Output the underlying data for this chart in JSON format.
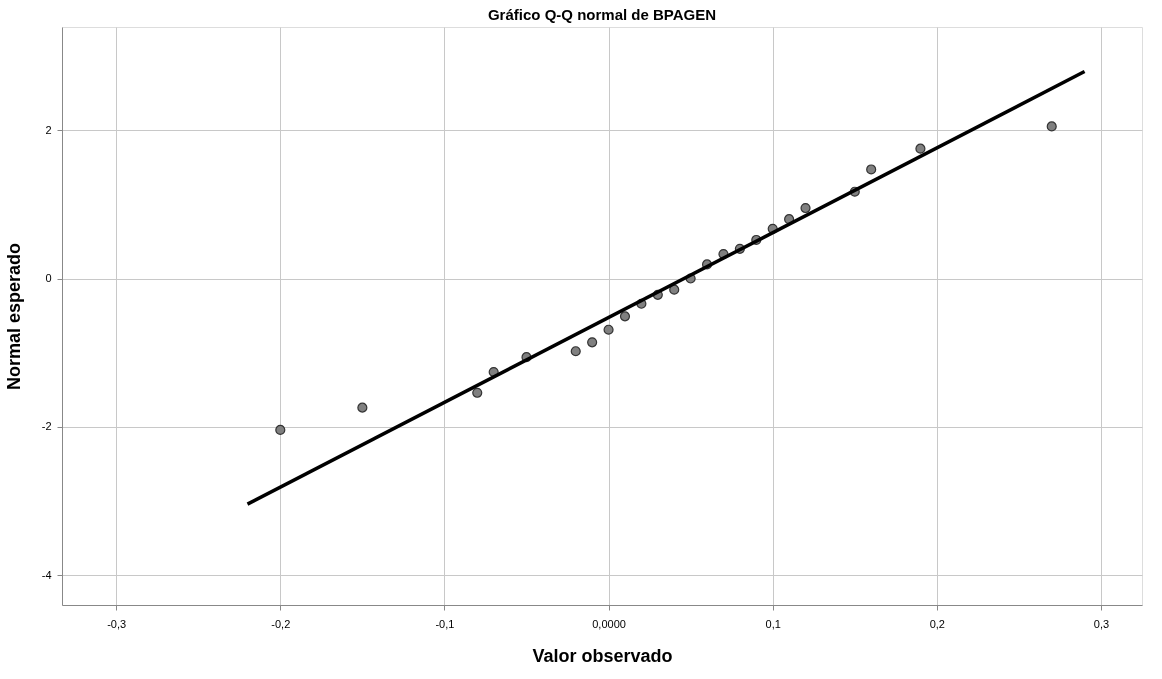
{
  "chart_data": {
    "type": "scatter",
    "title": "Gráfico Q-Q normal de BPAGEN",
    "xlabel": "Valor observado",
    "ylabel": "Normal esperado",
    "series": [
      {
        "color": "#808080",
        "x": [
          -0.2,
          -0.15,
          -0.08,
          -0.07,
          -0.05,
          -0.02,
          -0.01,
          0.0,
          0.01,
          0.02,
          0.03,
          0.04,
          0.05,
          0.06,
          0.07,
          0.08,
          0.09,
          0.1,
          0.11,
          0.12,
          0.15,
          0.16,
          0.19,
          0.27
        ],
        "values": [
          -2.04,
          -1.74,
          -1.54,
          -1.26,
          -1.06,
          -0.98,
          -0.86,
          -0.69,
          -0.51,
          -0.34,
          -0.22,
          -0.15,
          0.0,
          0.19,
          0.33,
          0.4,
          0.52,
          0.67,
          0.8,
          0.95,
          1.17,
          1.47,
          1.75,
          2.05
        ],
        "marker": "circle"
      },
      {
        "type": "line",
        "color": "#000000",
        "x": [
          -0.22,
          0.29
        ],
        "values": [
          -3.04,
          2.79
        ],
        "line_style": "solid"
      }
    ],
    "xlim": [
      -0.333,
      0.325
    ],
    "ylim": [
      -4.4,
      3.39
    ],
    "xticks": [
      {
        "value": -0.3,
        "label": "-0,3"
      },
      {
        "value": -0.2,
        "label": "-0,2"
      },
      {
        "value": -0.1,
        "label": "-0,1"
      },
      {
        "value": 0,
        "label": "0,0000"
      },
      {
        "value": 0.1,
        "label": "0,1"
      },
      {
        "value": 0.2,
        "label": "0,2"
      },
      {
        "value": 0.3,
        "label": "0,3"
      }
    ],
    "yticks": [
      -4,
      -2,
      0,
      2
    ],
    "grid": true
  }
}
